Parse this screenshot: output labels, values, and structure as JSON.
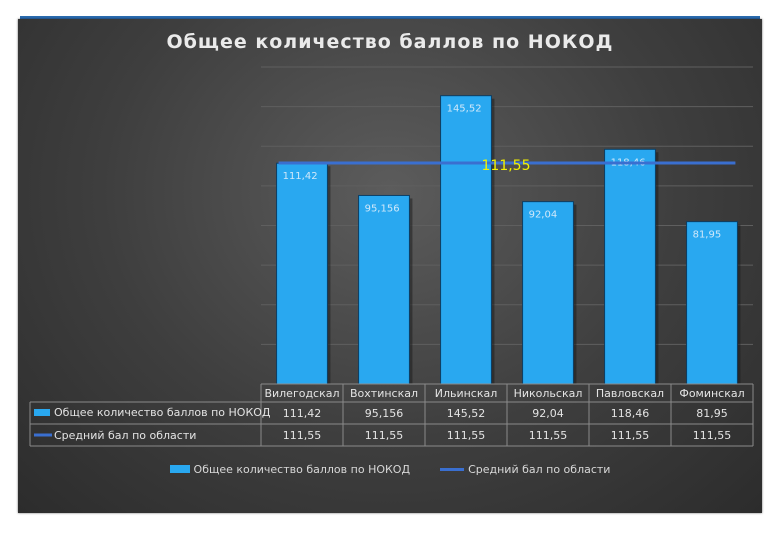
{
  "chart_data": {
    "type": "bar",
    "title": "Общее количество баллов по НОКОД",
    "categories": [
      "Вилегодскал",
      "Вохтинскал",
      "Ильинскал",
      "Никольскал",
      "Павловскал",
      "Фоминскал"
    ],
    "series": [
      {
        "name": "Общее количество баллов  по НОКОД",
        "kind": "bar",
        "values": [
          111.42,
          95.156,
          145.52,
          92.04,
          118.46,
          81.95
        ],
        "labels": [
          "111,42",
          "95,156",
          "145,52",
          "92,04",
          "118,46",
          "81,95"
        ],
        "color": "#29a8f0"
      },
      {
        "name": "Средний бал  по области",
        "kind": "line",
        "values": [
          111.55,
          111.55,
          111.55,
          111.55,
          111.55,
          111.55
        ],
        "labels": [
          "111,55",
          "111,55",
          "111,55",
          "111,55",
          "111,55",
          "111,55"
        ],
        "color": "#3a6fd0"
      }
    ],
    "average_label": "111,55",
    "average_label_color": "#f2f200",
    "ylim": [
      0,
      160
    ],
    "grid": true,
    "legend": "bottom",
    "data_table": true
  }
}
